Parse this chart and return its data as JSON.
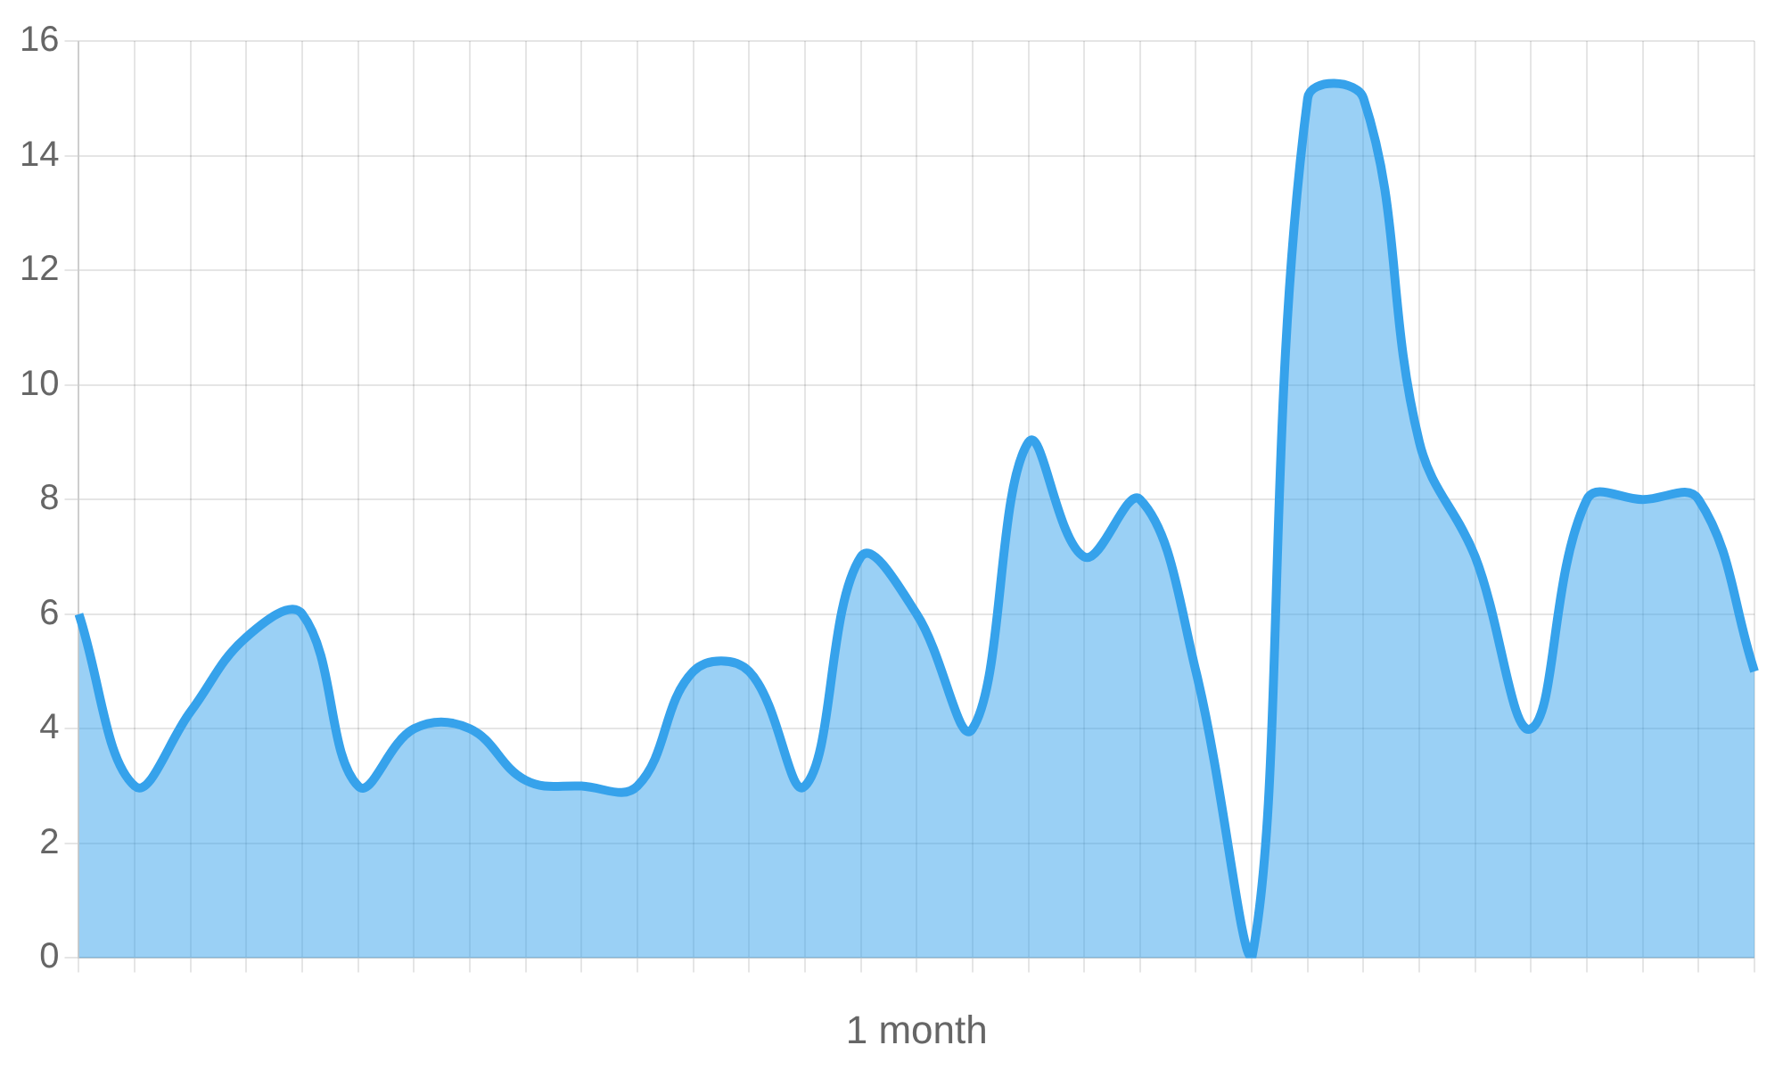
{
  "chart_data": {
    "type": "area",
    "xlabel": "1 month",
    "categories": [
      null,
      null,
      null,
      null,
      null,
      null,
      null,
      null,
      null,
      null,
      null,
      null,
      null,
      null,
      null,
      null,
      null,
      null,
      null,
      null,
      null,
      null,
      null,
      null,
      null,
      null,
      null,
      null,
      null,
      null,
      null
    ],
    "series": [
      {
        "color": "#36a2eb",
        "values": [
          6,
          3,
          4.3,
          5.6,
          6,
          3,
          4,
          4,
          3.1,
          3,
          3,
          5,
          5,
          3,
          7,
          6,
          4,
          9,
          7,
          8,
          5,
          0,
          15,
          15,
          9,
          7,
          4,
          8,
          8,
          8,
          5
        ]
      }
    ],
    "ylim": [
      0,
      16
    ],
    "yticks": [
      0,
      2,
      4,
      6,
      8,
      10,
      12,
      14,
      16
    ],
    "grid": true,
    "legend": false,
    "marker": "none"
  }
}
